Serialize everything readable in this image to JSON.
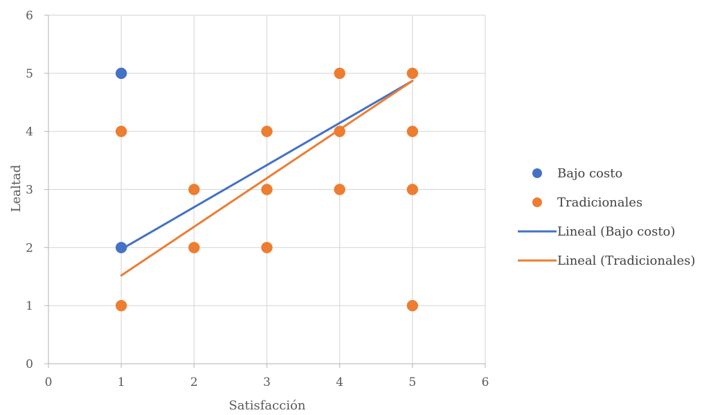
{
  "chart_data": {
    "type": "scatter",
    "title": "",
    "xlabel": "Satisfacción",
    "ylabel": "Lealtad",
    "xlim": [
      0,
      6
    ],
    "ylim": [
      0,
      6
    ],
    "xticks": [
      "0",
      "1",
      "2",
      "3",
      "4",
      "5",
      "6"
    ],
    "yticks": [
      "0",
      "1",
      "2",
      "3",
      "4",
      "5",
      "6"
    ],
    "grid": true,
    "legend_position": "right",
    "series": [
      {
        "name": "Bajo costo",
        "kind": "points",
        "color": "#4472C4",
        "points": [
          [
            1,
            5
          ],
          [
            1,
            2
          ]
        ]
      },
      {
        "name": "Tradicionales",
        "kind": "points",
        "color": "#ED7D31",
        "points": [
          [
            1,
            4
          ],
          [
            1,
            1
          ],
          [
            2,
            3
          ],
          [
            2,
            2
          ],
          [
            3,
            4
          ],
          [
            3,
            3
          ],
          [
            3,
            2
          ],
          [
            4,
            5
          ],
          [
            4,
            4
          ],
          [
            4,
            3
          ],
          [
            5,
            5
          ],
          [
            5,
            4
          ],
          [
            5,
            3
          ],
          [
            5,
            1
          ]
        ]
      },
      {
        "name": "Lineal (Bajo costo)",
        "kind": "trendline",
        "color": "#4472C4",
        "points": [
          [
            1,
            1.97
          ],
          [
            5,
            4.87
          ]
        ]
      },
      {
        "name": "Lineal (Tradicionales)",
        "kind": "trendline",
        "color": "#ED7D31",
        "points": [
          [
            1,
            1.52
          ],
          [
            5,
            4.87
          ]
        ]
      }
    ]
  }
}
